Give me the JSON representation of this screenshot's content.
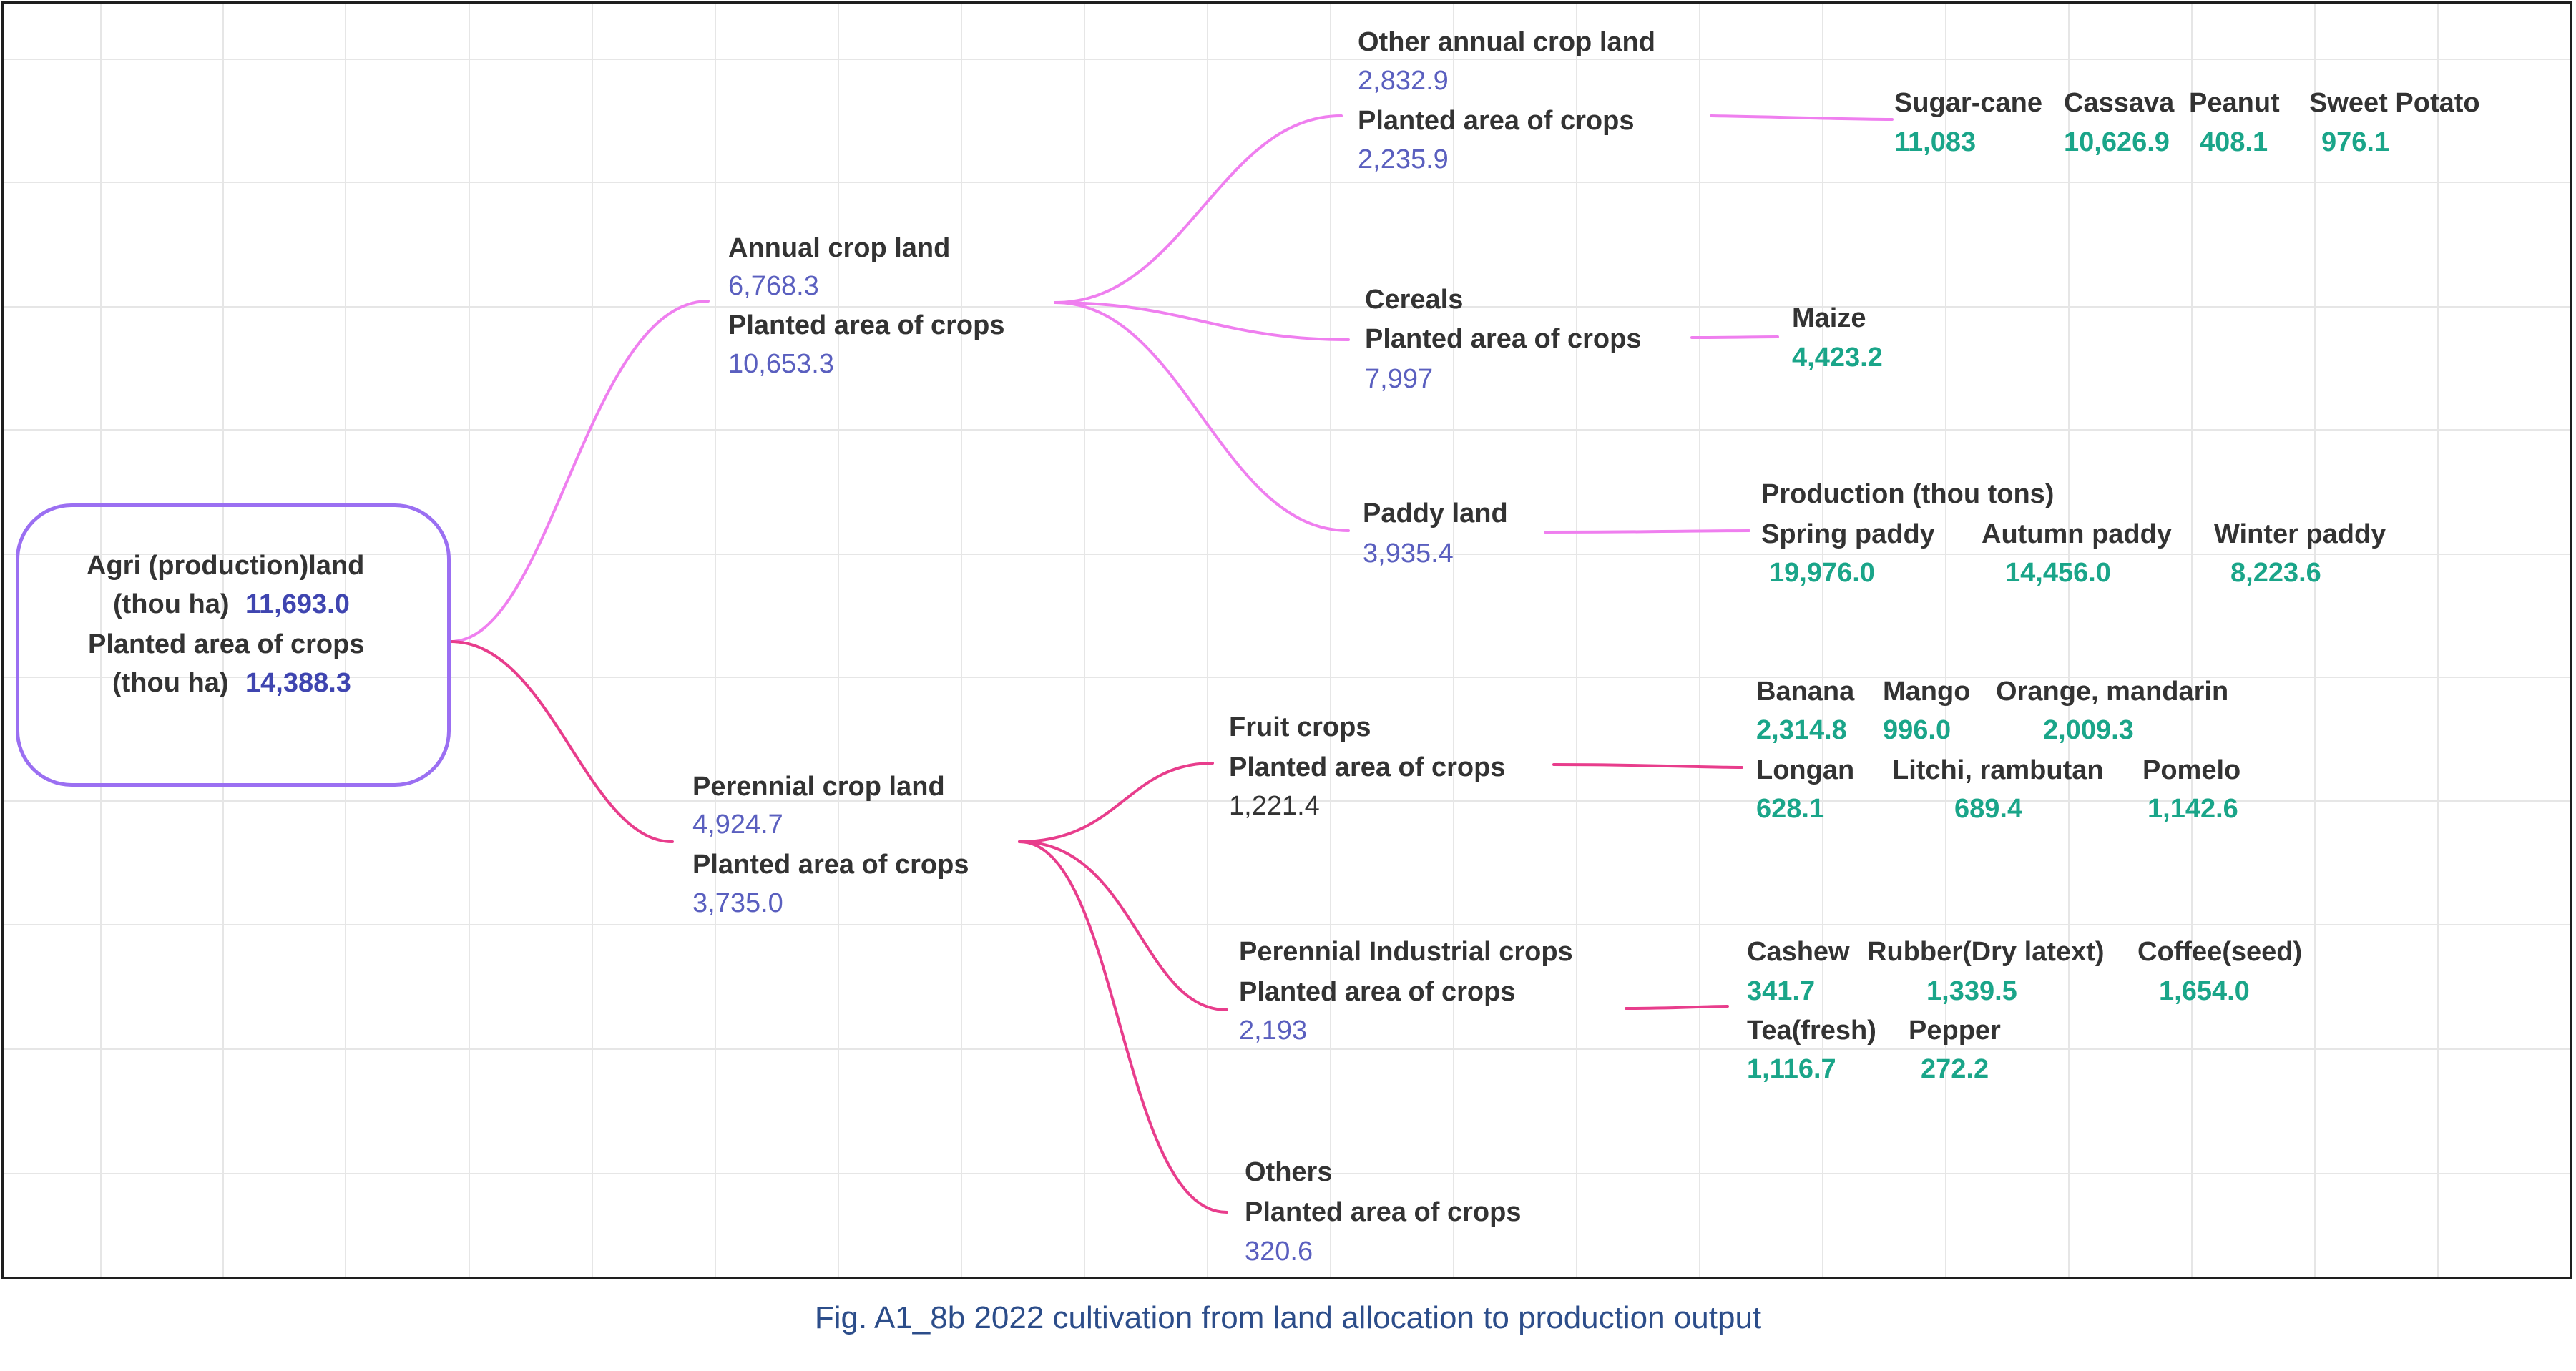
{
  "root": {
    "land_label": "Agri (production)land",
    "land_unit": "(thou ha)",
    "land_value": "11,693.0",
    "planted_label": "Planted area of crops",
    "planted_unit": "(thou ha)",
    "planted_value": "14,388.3"
  },
  "annual": {
    "title": "Annual crop land",
    "land_value": "6,768.3",
    "planted_label": "Planted area of crops",
    "planted_value": "10,653.3",
    "other": {
      "title": "Other annual crop land",
      "land_value": "2,832.9",
      "planted_label": "Planted area of crops",
      "planted_value": "2,235.9",
      "crops": [
        {
          "name": "Sugar-cane",
          "value": "11,083"
        },
        {
          "name": "Cassava",
          "value": "10,626.9"
        },
        {
          "name": "Peanut",
          "value": "408.1"
        },
        {
          "name": "Sweet Potato",
          "value": "976.1"
        }
      ]
    },
    "cereals": {
      "title": "Cereals",
      "planted_label": "Planted area of crops",
      "planted_value": "7,997",
      "crops": [
        {
          "name": "Maize",
          "value": "4,423.2"
        }
      ]
    },
    "paddy": {
      "title": "Paddy land",
      "land_value": "3,935.4",
      "production_label": "Production  (thou tons)",
      "crops": [
        {
          "name": "Spring paddy",
          "value": "19,976.0"
        },
        {
          "name": "Autumn paddy",
          "value": "14,456.0"
        },
        {
          "name": "Winter paddy",
          "value": "8,223.6"
        }
      ]
    }
  },
  "perennial": {
    "title": "Perennial crop land",
    "land_value": "4,924.7",
    "planted_label": "Planted area of crops",
    "planted_value": "3,735.0",
    "fruit": {
      "title": "Fruit crops",
      "planted_label": "Planted area of crops",
      "planted_value": "1,221.4",
      "crops": [
        {
          "name": "Banana",
          "value": "2,314.8"
        },
        {
          "name": "Mango",
          "value": "996.0"
        },
        {
          "name": "Orange, mandarin",
          "value": "2,009.3"
        },
        {
          "name": "Longan",
          "value": "628.1"
        },
        {
          "name": "Litchi, rambutan",
          "value": "689.4"
        },
        {
          "name": "Pomelo",
          "value": "1,142.6"
        }
      ]
    },
    "industrial": {
      "title": "Perennial Industrial crops",
      "planted_label": "Planted area of crops",
      "planted_value": "2,193",
      "crops": [
        {
          "name": "Cashew",
          "value": "341.7"
        },
        {
          "name": "Rubber(Dry latext)",
          "value": "1,339.5"
        },
        {
          "name": "Coffee(seed)",
          "value": "1,654.0"
        },
        {
          "name": "Tea(fresh)",
          "value": "1,116.7"
        },
        {
          "name": "Pepper",
          "value": "272.2"
        }
      ]
    },
    "others": {
      "title": "Others",
      "planted_label": "Planted area of crops",
      "planted_value": "320.6"
    }
  },
  "colors": {
    "annual_branch": "#ef7fef",
    "perennial_branch": "#e83d8c",
    "root_border": "#9b6ff2",
    "value_blue": "#5a5fbf",
    "value_green": "#1aa589"
  },
  "caption": "Fig. A1_8b 2022 cultivation from land allocation to production output"
}
